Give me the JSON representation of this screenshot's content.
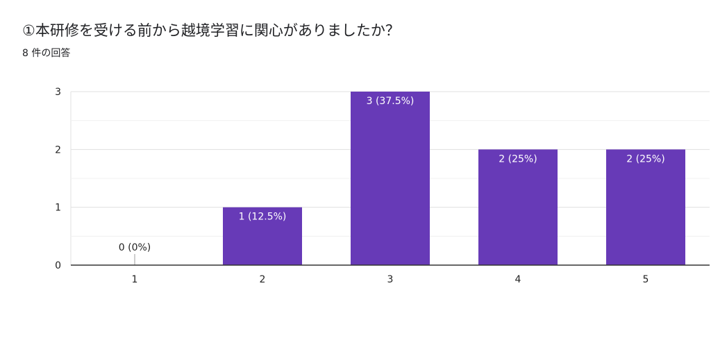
{
  "header": {
    "title": "①本研修を受ける前から越境学習に関心がありましたか？",
    "responses": "8 件の回答"
  },
  "chart_data": {
    "type": "bar",
    "categories": [
      "1",
      "2",
      "3",
      "4",
      "5"
    ],
    "values": [
      0,
      1,
      3,
      2,
      2
    ],
    "data_labels": [
      "0 (0%)",
      "1 (12.5%)",
      "3 (37.5%)",
      "2 (25%)",
      "2 (25%)"
    ],
    "yticks": [
      "0",
      "1",
      "2",
      "3"
    ],
    "ylim": [
      0,
      3
    ],
    "grid": true,
    "bar_color": "#673ab7"
  }
}
